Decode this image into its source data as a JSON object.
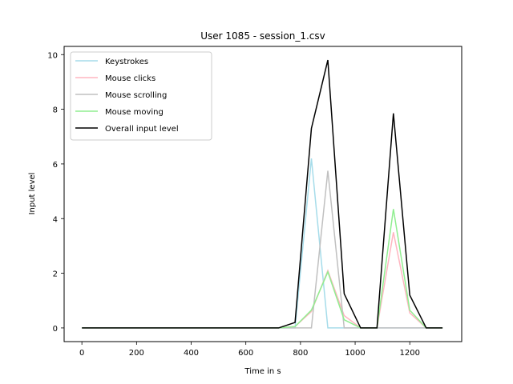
{
  "chart_data": {
    "type": "line",
    "title": "User 1085 - session_1.csv",
    "xlabel": "Time in s",
    "ylabel": "Input level",
    "xlim": [
      -65,
      1390
    ],
    "ylim": [
      -0.5,
      10.3
    ],
    "xticks": [
      0,
      200,
      400,
      600,
      800,
      1000,
      1200
    ],
    "yticks": [
      0,
      2,
      4,
      6,
      8,
      10
    ],
    "grid": false,
    "legend_position": "top-left",
    "x": [
      0,
      60,
      120,
      180,
      240,
      300,
      360,
      420,
      480,
      540,
      600,
      660,
      720,
      780,
      840,
      900,
      960,
      1020,
      1080,
      1140,
      1200,
      1260,
      1320
    ],
    "series": [
      {
        "name": "Keystrokes",
        "color": "#a6dcea",
        "values": [
          0,
          0,
          0,
          0,
          0,
          0,
          0,
          0,
          0,
          0,
          0,
          0,
          0,
          0,
          6.2,
          0,
          0,
          0,
          0,
          0,
          0,
          0,
          0
        ]
      },
      {
        "name": "Mouse clicks",
        "color": "#ffb6c1",
        "values": [
          0,
          0,
          0,
          0,
          0,
          0,
          0,
          0,
          0,
          0,
          0,
          0,
          0,
          0.05,
          0.6,
          2.1,
          0.45,
          0,
          0,
          3.5,
          0.55,
          0,
          0
        ]
      },
      {
        "name": "Mouse scrolling",
        "color": "#c0c0c0",
        "values": [
          0,
          0,
          0,
          0,
          0,
          0,
          0,
          0,
          0,
          0,
          0,
          0,
          0,
          0,
          0,
          5.75,
          0,
          0,
          0,
          0,
          0,
          0,
          0
        ]
      },
      {
        "name": "Mouse moving",
        "color": "#90ee90",
        "values": [
          0,
          0,
          0,
          0,
          0,
          0,
          0,
          0,
          0,
          0,
          0,
          0,
          0,
          0.05,
          0.65,
          2.05,
          0.3,
          0,
          0,
          4.35,
          0.65,
          0,
          0
        ]
      },
      {
        "name": "Overall input level",
        "color": "#000000",
        "values": [
          0,
          0,
          0,
          0,
          0,
          0,
          0,
          0,
          0,
          0,
          0,
          0,
          0,
          0.2,
          7.3,
          9.8,
          1.25,
          0,
          0,
          7.85,
          1.2,
          0,
          0
        ]
      }
    ]
  }
}
